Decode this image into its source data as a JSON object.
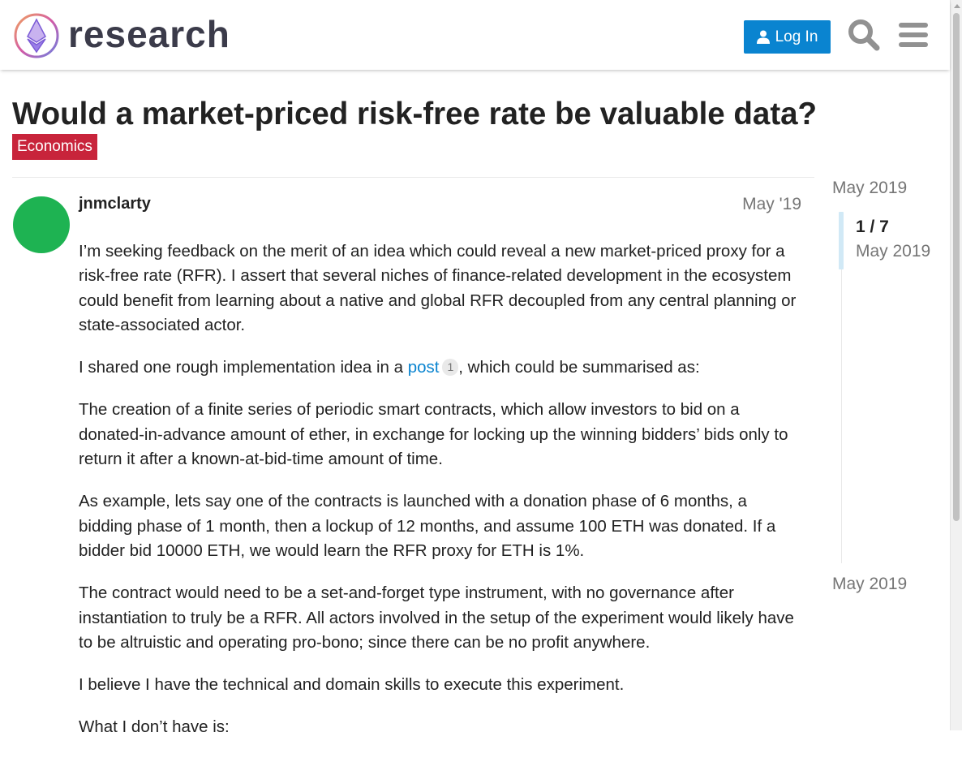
{
  "header": {
    "brand": "research",
    "login_label": "Log In",
    "search_icon": "search-icon",
    "menu_icon": "hamburger-menu-icon",
    "accent_color": "#0a84d0"
  },
  "topic": {
    "title": "Would a market-priced risk-free rate be valuable data?",
    "category": "Economics",
    "category_color": "#c8243b"
  },
  "post": {
    "username": "jnmclarty",
    "date": "May '19",
    "avatar_color": "#1eb352",
    "paragraphs": {
      "p1": "I’m seeking feedback on the merit of an idea which could reveal a new market-priced proxy for a risk-free rate (RFR). I assert that several niches of finance-related development in the ecosystem could benefit from learning about a native and global RFR decoupled from any central planning or state-associated actor.",
      "p2_before": "I shared one rough implementation idea in a ",
      "p2_link": "post",
      "p2_link_count": "1",
      "p2_after": ", which could be summarised as:",
      "p3": "The creation of a finite series of periodic smart contracts, which allow investors to bid on a donated-in-advance amount of ether, in exchange for locking up the winning bidders’ bids only to return it after a known-at-bid-time amount of time.",
      "p4": "As example, lets say one of the contracts is launched with a donation phase of 6 months, a bidding phase of 1 month, then a lockup of 12 months, and assume 100 ETH was donated. If a bidder bid 10000 ETH, we would learn the RFR proxy for ETH is 1%.",
      "p5": "The contract would need to be a set-and-forget type instrument, with no governance after instantiation to truly be a RFR. All actors involved in the setup of the experiment would likely have to be altruistic and operating pro-bono; since there can be no profit anywhere.",
      "p6": "I believe I have the technical and domain skills to execute this experiment.",
      "p7": "What I don’t have is:"
    }
  },
  "timeline": {
    "start_date": "May 2019",
    "position": "1 / 7",
    "handle_date": "May 2019",
    "end_date": "May 2019"
  }
}
